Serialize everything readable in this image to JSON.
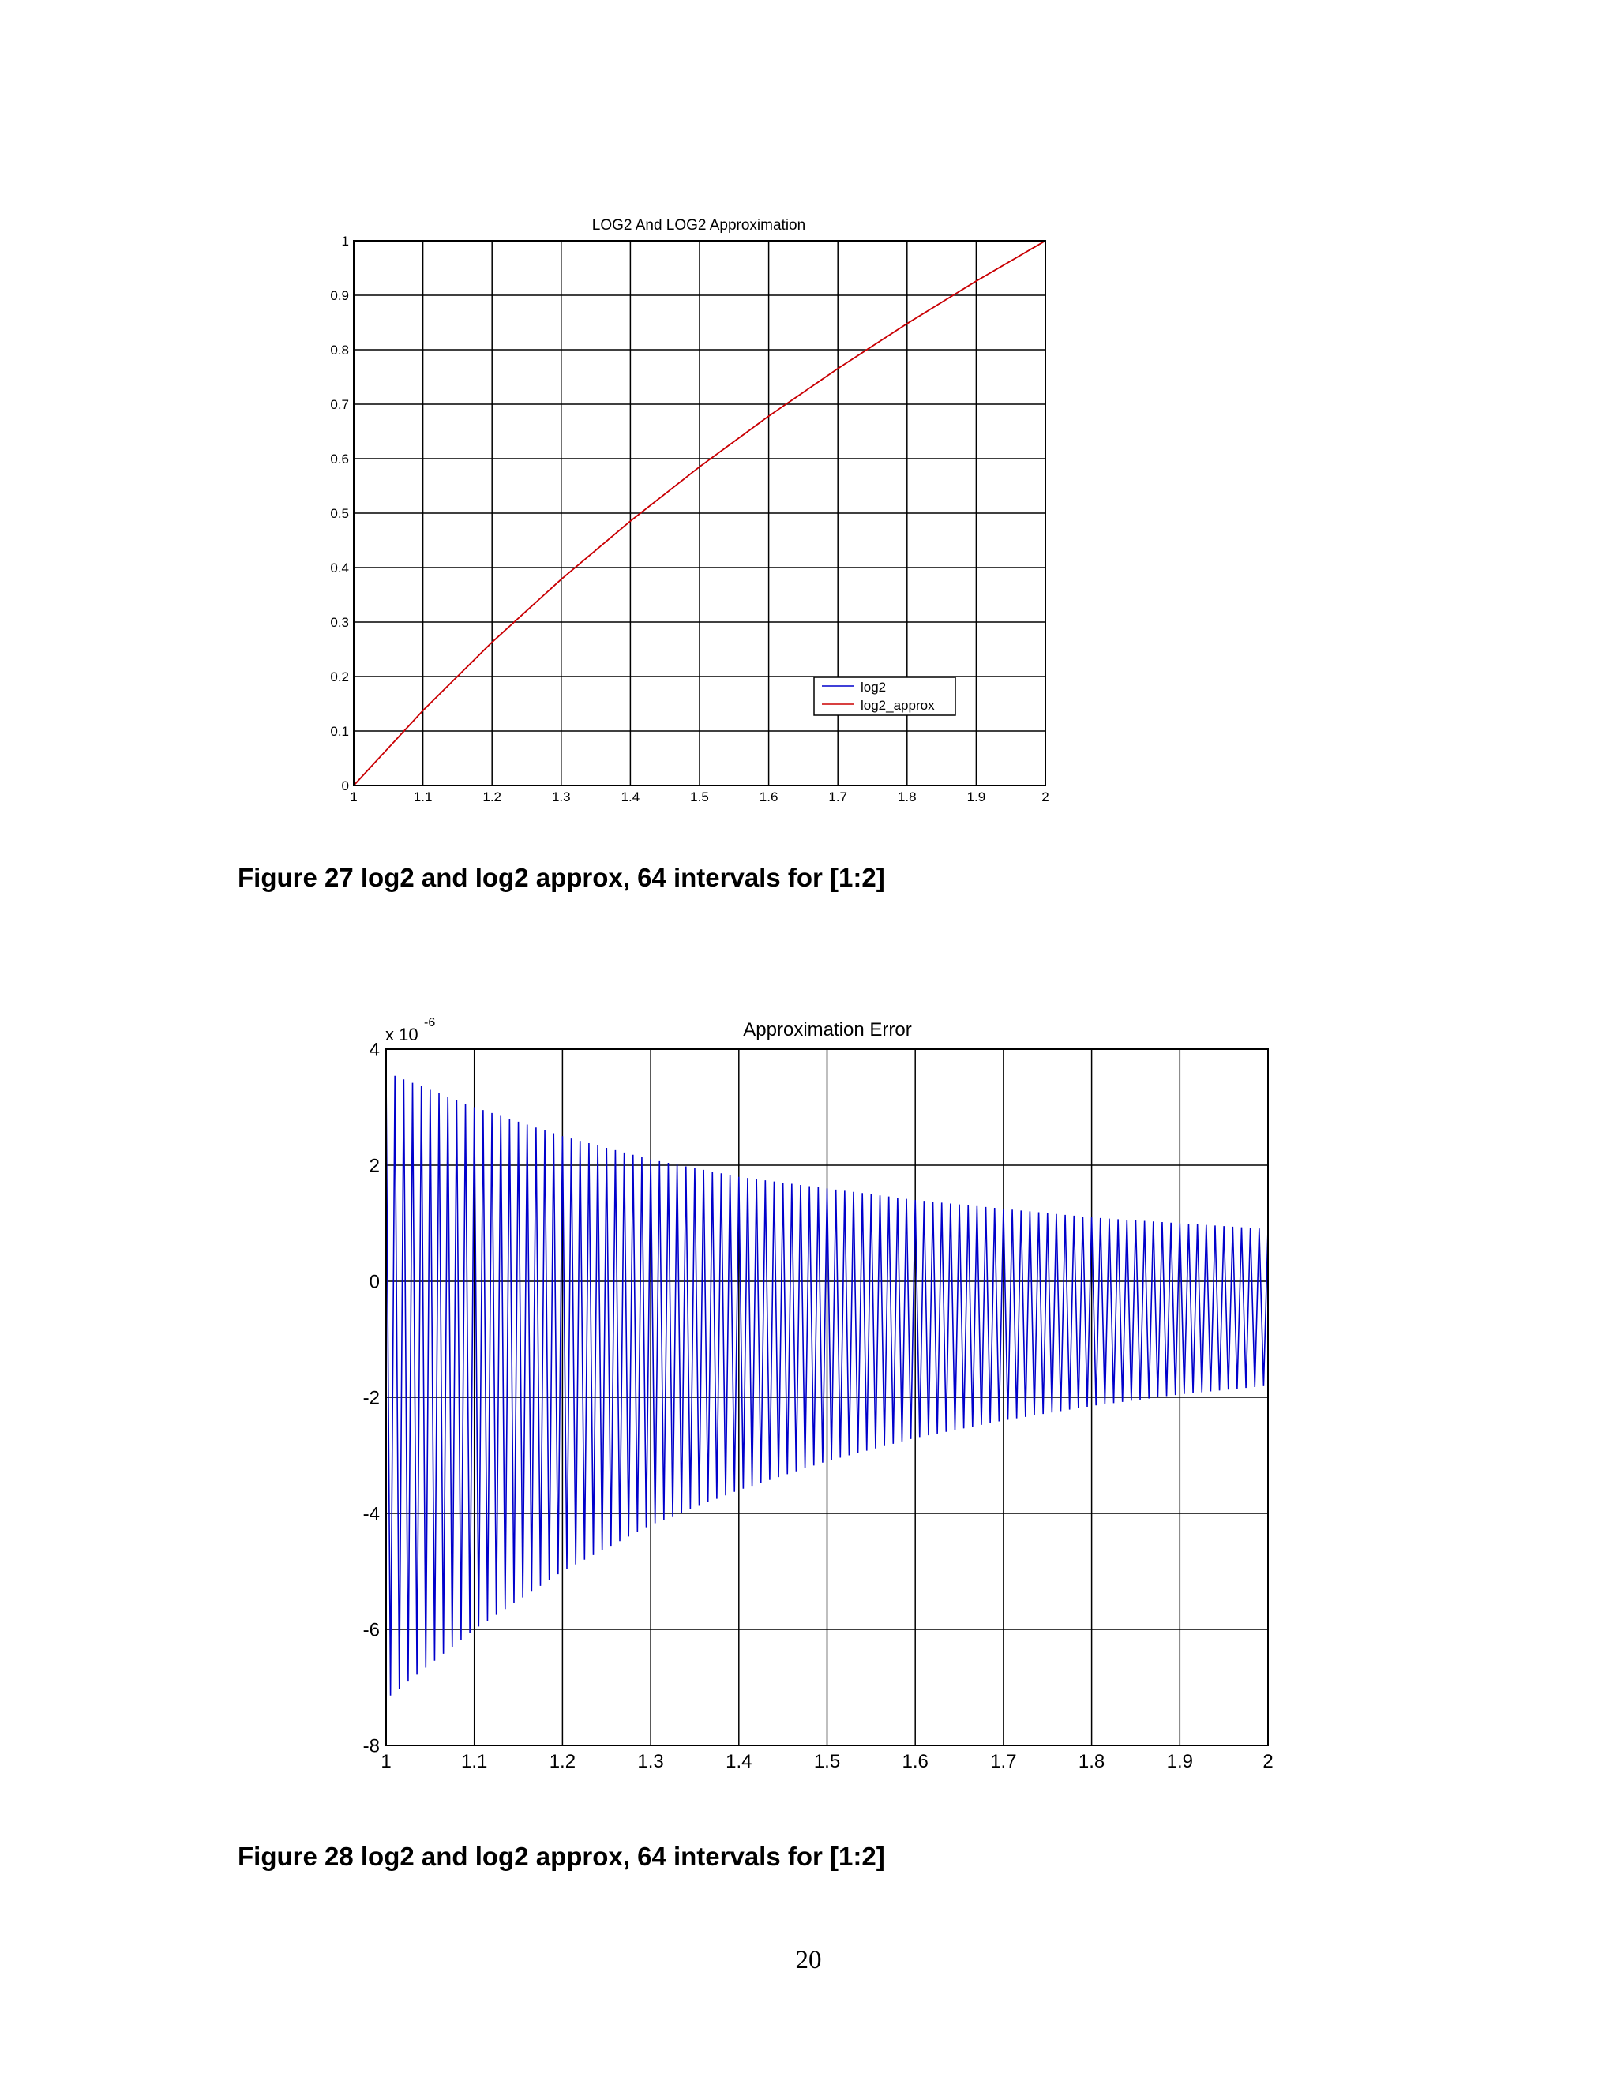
{
  "figures": [
    {
      "caption": "Figure 27  log2 and log2 approx, 64 intervals for [1:2]"
    },
    {
      "caption": "Figure 28  log2 and log2 approx, 64 intervals for [1:2]"
    }
  ],
  "page_number": "20",
  "chart_data": [
    {
      "type": "line",
      "title": "LOG2 And LOG2 Approximation",
      "xlabel": "",
      "ylabel": "",
      "xlim": [
        1,
        2
      ],
      "ylim": [
        0,
        1
      ],
      "xticks": [
        "1",
        "1.1",
        "1.2",
        "1.3",
        "1.4",
        "1.5",
        "1.6",
        "1.7",
        "1.8",
        "1.9",
        "2"
      ],
      "yticks": [
        "0",
        "0.1",
        "0.2",
        "0.3",
        "0.4",
        "0.5",
        "0.6",
        "0.7",
        "0.8",
        "0.9",
        "1"
      ],
      "grid": true,
      "legend_position": "bottom-right",
      "x": [
        1.0,
        1.1,
        1.2,
        1.3,
        1.4,
        1.5,
        1.6,
        1.7,
        1.8,
        1.9,
        2.0
      ],
      "series": [
        {
          "name": "log2",
          "color": "#0000cc",
          "values": [
            0,
            0.1375,
            0.263,
            0.3785,
            0.4854,
            0.585,
            0.6781,
            0.7655,
            0.848,
            0.926,
            1.0
          ]
        },
        {
          "name": "log2_approx",
          "color": "#cc0000",
          "values": [
            0,
            0.1375,
            0.263,
            0.3785,
            0.4854,
            0.585,
            0.6781,
            0.7655,
            0.848,
            0.926,
            1.0
          ]
        }
      ]
    },
    {
      "type": "line",
      "title": "Approximation  Error",
      "xlabel": "",
      "ylabel": "",
      "y_exponent_label": "x 10",
      "y_exponent": "-6",
      "xlim": [
        1,
        2
      ],
      "ylim": [
        -8,
        4
      ],
      "xticks": [
        "1",
        "1.1",
        "1.2",
        "1.3",
        "1.4",
        "1.5",
        "1.6",
        "1.7",
        "1.8",
        "1.9",
        "2"
      ],
      "yticks": [
        "-8",
        "-6",
        "-4",
        "-2",
        "0",
        "2",
        "4"
      ],
      "grid": true,
      "series": [
        {
          "name": "",
          "color": "#0000cc",
          "oscillation_cycles": 100,
          "x": [
            1.0,
            1.1,
            1.2,
            1.3,
            1.4,
            1.5,
            1.6,
            1.7,
            1.8,
            1.9,
            2.0
          ],
          "upper_envelope": [
            3.6,
            3.0,
            2.5,
            2.1,
            1.8,
            1.6,
            1.4,
            1.25,
            1.1,
            1.0,
            0.9
          ],
          "lower_envelope": [
            -7.2,
            -6.0,
            -5.0,
            -4.2,
            -3.6,
            -3.1,
            -2.7,
            -2.4,
            -2.15,
            -1.95,
            -1.8
          ]
        }
      ]
    }
  ]
}
